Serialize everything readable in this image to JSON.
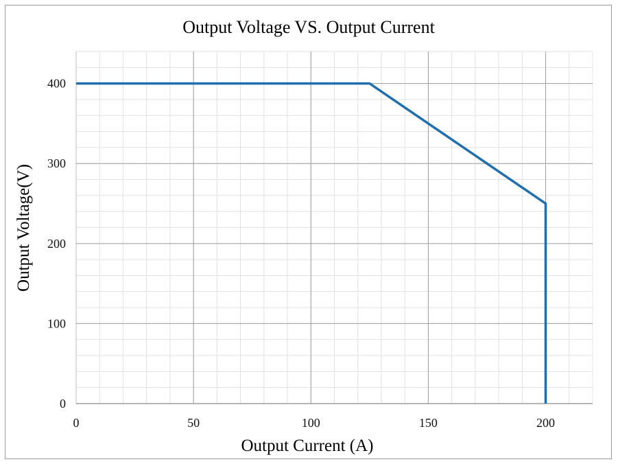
{
  "chart_data": {
    "type": "line",
    "title": "Output Voltage VS. Output Current",
    "xlabel": "Output Current (A)",
    "ylabel": "Output Voltage(V)",
    "xlim": [
      0,
      220
    ],
    "ylim": [
      0,
      440
    ],
    "x_ticks": [
      0,
      50,
      100,
      150,
      200
    ],
    "y_ticks": [
      0,
      100,
      200,
      300,
      400
    ],
    "x_minor_step": 10,
    "y_minor_step": 20,
    "grid": true,
    "series": [
      {
        "color": "#1f6fae",
        "points": [
          [
            0,
            400
          ],
          [
            125,
            400
          ],
          [
            200,
            250
          ],
          [
            200,
            0
          ]
        ]
      }
    ]
  }
}
